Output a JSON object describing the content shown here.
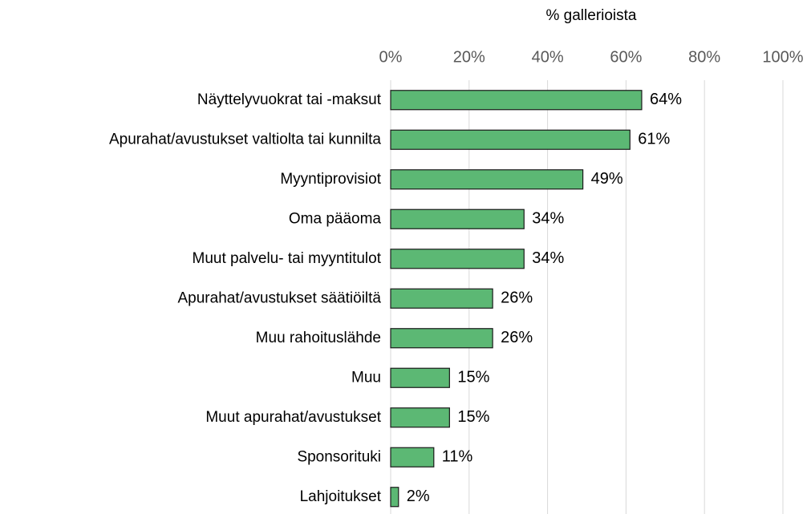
{
  "chart_data": {
    "type": "barh",
    "xlabel": "% gallerioista",
    "categories": [
      "Näyttelyvuokrat tai -maksut",
      "Apurahat/avustukset valtiolta tai kunnilta",
      "Myyntiprovisiot",
      "Oma pääoma",
      "Muut palvelu- tai myyntitulot",
      "Apurahat/avustukset säätiöiltä",
      "Muu rahoituslähde",
      "Muu",
      "Muut apurahat/avustukset",
      "Sponsorituki",
      "Lahjoitukset"
    ],
    "values": [
      64,
      61,
      49,
      34,
      34,
      26,
      26,
      15,
      15,
      11,
      2
    ],
    "value_labels": [
      "64%",
      "61%",
      "49%",
      "34%",
      "34%",
      "26%",
      "26%",
      "15%",
      "15%",
      "11%",
      "2%"
    ],
    "color": "#5cb874",
    "xlim": [
      0,
      100
    ],
    "xticks": [
      {
        "value": 0,
        "label": "0%"
      },
      {
        "value": 20,
        "label": "20%"
      },
      {
        "value": 40,
        "label": "40%"
      },
      {
        "value": 60,
        "label": "60%"
      },
      {
        "value": 80,
        "label": "80%"
      },
      {
        "value": 100,
        "label": "100%"
      }
    ],
    "grid": true
  }
}
